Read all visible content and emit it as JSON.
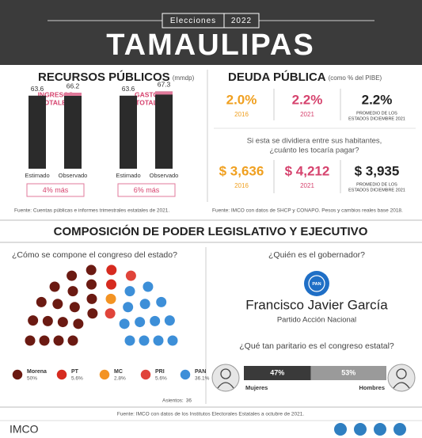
{
  "header": {
    "kicker_left": "Elecciones",
    "kicker_right": "2022",
    "title": "TAMAULIPAS"
  },
  "recursos": {
    "title": "RECURSOS PÚBLICOS",
    "unit": "(mmdp)",
    "panels": [
      {
        "title": [
          "INGRESOS",
          "TOTALES"
        ],
        "bars": [
          {
            "label": "Estimado",
            "value": 63.6
          },
          {
            "label": "Observado",
            "value": 66.2
          }
        ],
        "note": "4% más"
      },
      {
        "title": [
          "GASTO",
          "TOTAL"
        ],
        "bars": [
          {
            "label": "Estimado",
            "value": 63.6
          },
          {
            "label": "Observado",
            "value": 67.3
          }
        ],
        "note": "6% más"
      }
    ],
    "source": "Fuente: Cuentas públicas e informes trimestrales estatales de 2021."
  },
  "deuda": {
    "title": "DEUDA PÚBLICA",
    "unit": "(como % del PIBE)",
    "row1": [
      {
        "value": "2.0%",
        "label": [
          "2016"
        ]
      },
      {
        "value": "2.2%",
        "label": [
          "2021"
        ]
      },
      {
        "value": "2.2%",
        "label": [
          "PROMEDIO DE LOS",
          "ESTADOS DICIEMBRE 2021"
        ]
      }
    ],
    "question": [
      "Si esta se dividiera entre sus habitantes,",
      "¿cuánto les tocaría pagar?"
    ],
    "row2": [
      {
        "value": "$ 3,636",
        "label": [
          "2016"
        ]
      },
      {
        "value": "$ 4,212",
        "label": [
          "2021"
        ]
      },
      {
        "value": "$ 3,935",
        "label": [
          "PROMEDIO DE LOS",
          "ESTADOS DICIEMBRE 2021"
        ]
      }
    ],
    "source": "Fuente: IMCO con datos de SHCP y CONAPO. Pesos y cambios reales base 2018."
  },
  "section_title": "COMPOSICIÓN DE PODER LEGISLATIVO Y EJECUTIVO",
  "legislativo": {
    "question": "¿Cómo se compone el congreso del estado?",
    "parties": [
      {
        "name": "Morena",
        "pct": "50%",
        "seats": 18,
        "color": "#6b1a12"
      },
      {
        "name": "PT",
        "pct": "5.6%",
        "seats": 2,
        "color": "#d62b1f"
      },
      {
        "name": "MC",
        "pct": "2.8%",
        "seats": 1,
        "color": "#f39323"
      },
      {
        "name": "PRI",
        "pct": "5.6%",
        "seats": 2,
        "color": "#e0443a"
      },
      {
        "name": "PAN",
        "pct": "36.1%",
        "seats": 13,
        "color": "#3d8fd8"
      }
    ],
    "seats_label": "Asientos:",
    "seats_total": 36
  },
  "ejecutivo": {
    "question": "¿Quién es el gobernador?",
    "name": "Francisco Javier García",
    "party": "Partido Acción Nacional",
    "parity_question": "¿Qué tan paritario es el congreso estatal?",
    "women": {
      "label": "Mujeres",
      "value": 47,
      "value_label": "47%"
    },
    "men": {
      "label": "Hombres",
      "value": 53,
      "value_label": "53%"
    }
  },
  "footer": {
    "source": "Fuente: IMCO con datos de los Institutos Electorales Estatales a octubre de 2021.",
    "logo": "IMCO"
  }
}
